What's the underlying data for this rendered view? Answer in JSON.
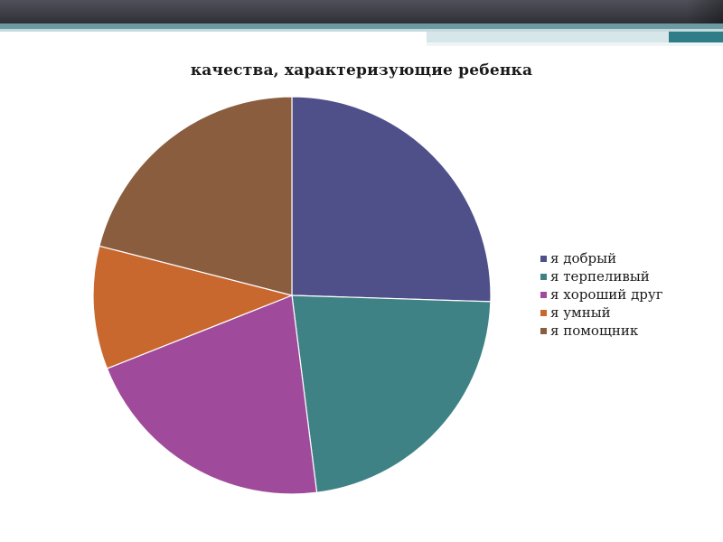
{
  "chart_data": {
    "type": "pie",
    "title": "качества, характеризующие ребенка",
    "categories": [
      "я добрый",
      "я терпеливый",
      "я хороший друг",
      "я умный",
      "я помощник"
    ],
    "values": [
      25.5,
      22.5,
      21,
      10,
      21
    ],
    "colors": [
      "#4f5089",
      "#3f8285",
      "#a04a9c",
      "#c8682f",
      "#8a5d3e"
    ],
    "legend_position": "right",
    "start_angle_deg": 0,
    "direction": "clockwise"
  }
}
